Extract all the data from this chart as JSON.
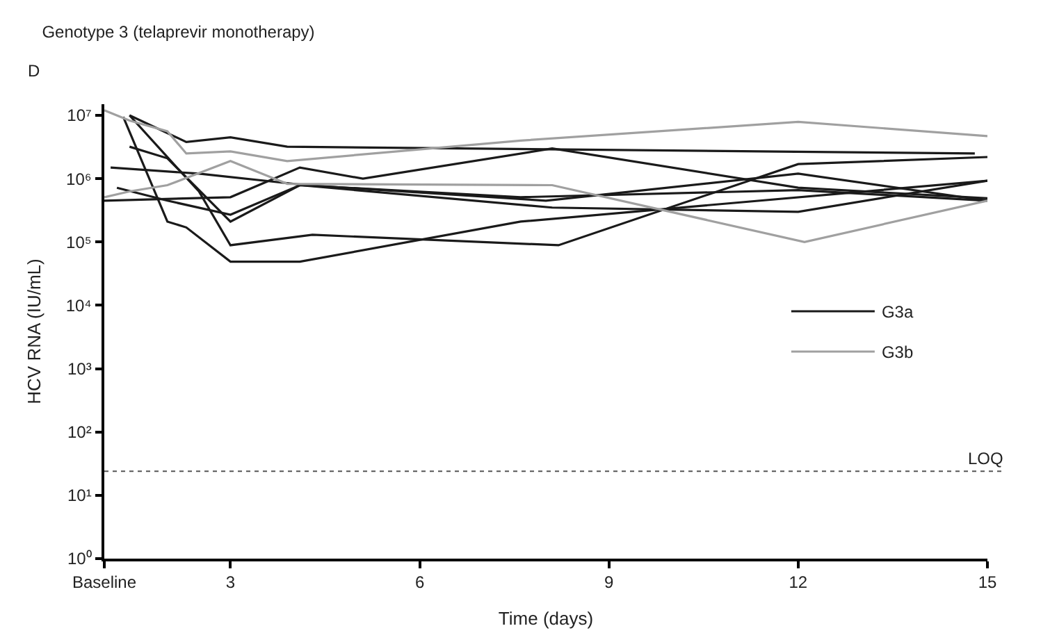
{
  "chart_data": {
    "type": "line",
    "title": "Genotype 3 (telaprevir monotherapy)",
    "annotations": [
      "D"
    ],
    "xlabel": "Time (days)",
    "ylabel": "HCV RNA (IU/mL)",
    "log": "y",
    "legend": "right",
    "marker": "none",
    "line_style": "solid",
    "xlim": [
      1,
      15
    ],
    "xticks": [
      {
        "value": 1,
        "label": "Baseline"
      },
      3,
      6,
      9,
      12,
      15
    ],
    "ylim": [
      1,
      15000000
    ],
    "yticks": [
      {
        "value": 1,
        "label": "10⁰"
      },
      {
        "value": 10,
        "label": "10¹"
      },
      {
        "value": 100,
        "label": "10²"
      },
      {
        "value": 1000,
        "label": "10³"
      },
      {
        "value": 10000,
        "label": "10⁴"
      },
      {
        "value": 100000,
        "label": "10⁵"
      },
      {
        "value": 1000000,
        "label": "10⁶"
      },
      {
        "value": 10000000,
        "label": "10⁷"
      }
    ],
    "ref_lines": [
      {
        "axis": "y",
        "value": 24,
        "label": "LOQ",
        "color": "#555555",
        "line_style": "dotted"
      }
    ],
    "series": [
      {
        "name": "G3a",
        "color": "#1a1a1a",
        "x": [
          1.4,
          2.3,
          3.0,
          3.9,
          14.8
        ],
        "values": [
          10000000,
          3800000,
          4500000,
          3200000,
          2500000
        ]
      },
      {
        "color": "#1a1a1a",
        "x": [
          1.4,
          2.1,
          2.5,
          3.0,
          4.3,
          8.2,
          12.0,
          15.0
        ],
        "values": [
          10000000,
          1700000,
          630000,
          89000,
          130000,
          89000,
          1700000,
          2200000
        ]
      },
      {
        "color": "#1a1a1a",
        "x": [
          1.3,
          2.0,
          2.3,
          3.0,
          4.1,
          7.6,
          15.0
        ],
        "values": [
          9500000,
          210000,
          170000,
          49000,
          49000,
          210000,
          930000
        ]
      },
      {
        "color": "#1a1a1a",
        "x": [
          1.4,
          2.0,
          3.0,
          4.1,
          7.6,
          12.0,
          15.0
        ],
        "values": [
          3200000,
          2100000,
          210000,
          790000,
          510000,
          660000,
          450000
        ]
      },
      {
        "color": "#1a1a1a",
        "x": [
          1.0,
          3.0,
          4.1,
          5.1,
          8.1,
          12.0,
          15.0
        ],
        "values": [
          450000,
          510000,
          1500000,
          1000000,
          3000000,
          720000,
          490000
        ]
      },
      {
        "color": "#1a1a1a",
        "x": [
          1.2,
          2.0,
          3.0,
          4.1,
          8.1,
          12.0,
          15.0
        ],
        "values": [
          720000,
          450000,
          270000,
          790000,
          350000,
          300000,
          930000
        ]
      },
      {
        "color": "#1a1a1a",
        "x": [
          1.1,
          2.5,
          4.2,
          8.0,
          12.0,
          15.0
        ],
        "values": [
          1500000,
          1200000,
          790000,
          450000,
          1200000,
          450000
        ]
      },
      {
        "name": "G3b",
        "color": "#a0a0a0",
        "x": [
          1.0,
          1.4,
          2.0,
          2.3,
          3.0,
          3.9,
          7.6,
          12.0,
          15.0
        ],
        "values": [
          12000000,
          8300000,
          5600000,
          2500000,
          2700000,
          1900000,
          4000000,
          7900000,
          4700000
        ]
      },
      {
        "color": "#a0a0a0",
        "x": [
          1.0,
          1.4,
          2.0,
          3.0,
          3.9,
          8.1,
          12.1,
          15.0
        ],
        "values": [
          510000,
          630000,
          790000,
          1900000,
          830000,
          790000,
          100000,
          450000
        ]
      }
    ]
  }
}
